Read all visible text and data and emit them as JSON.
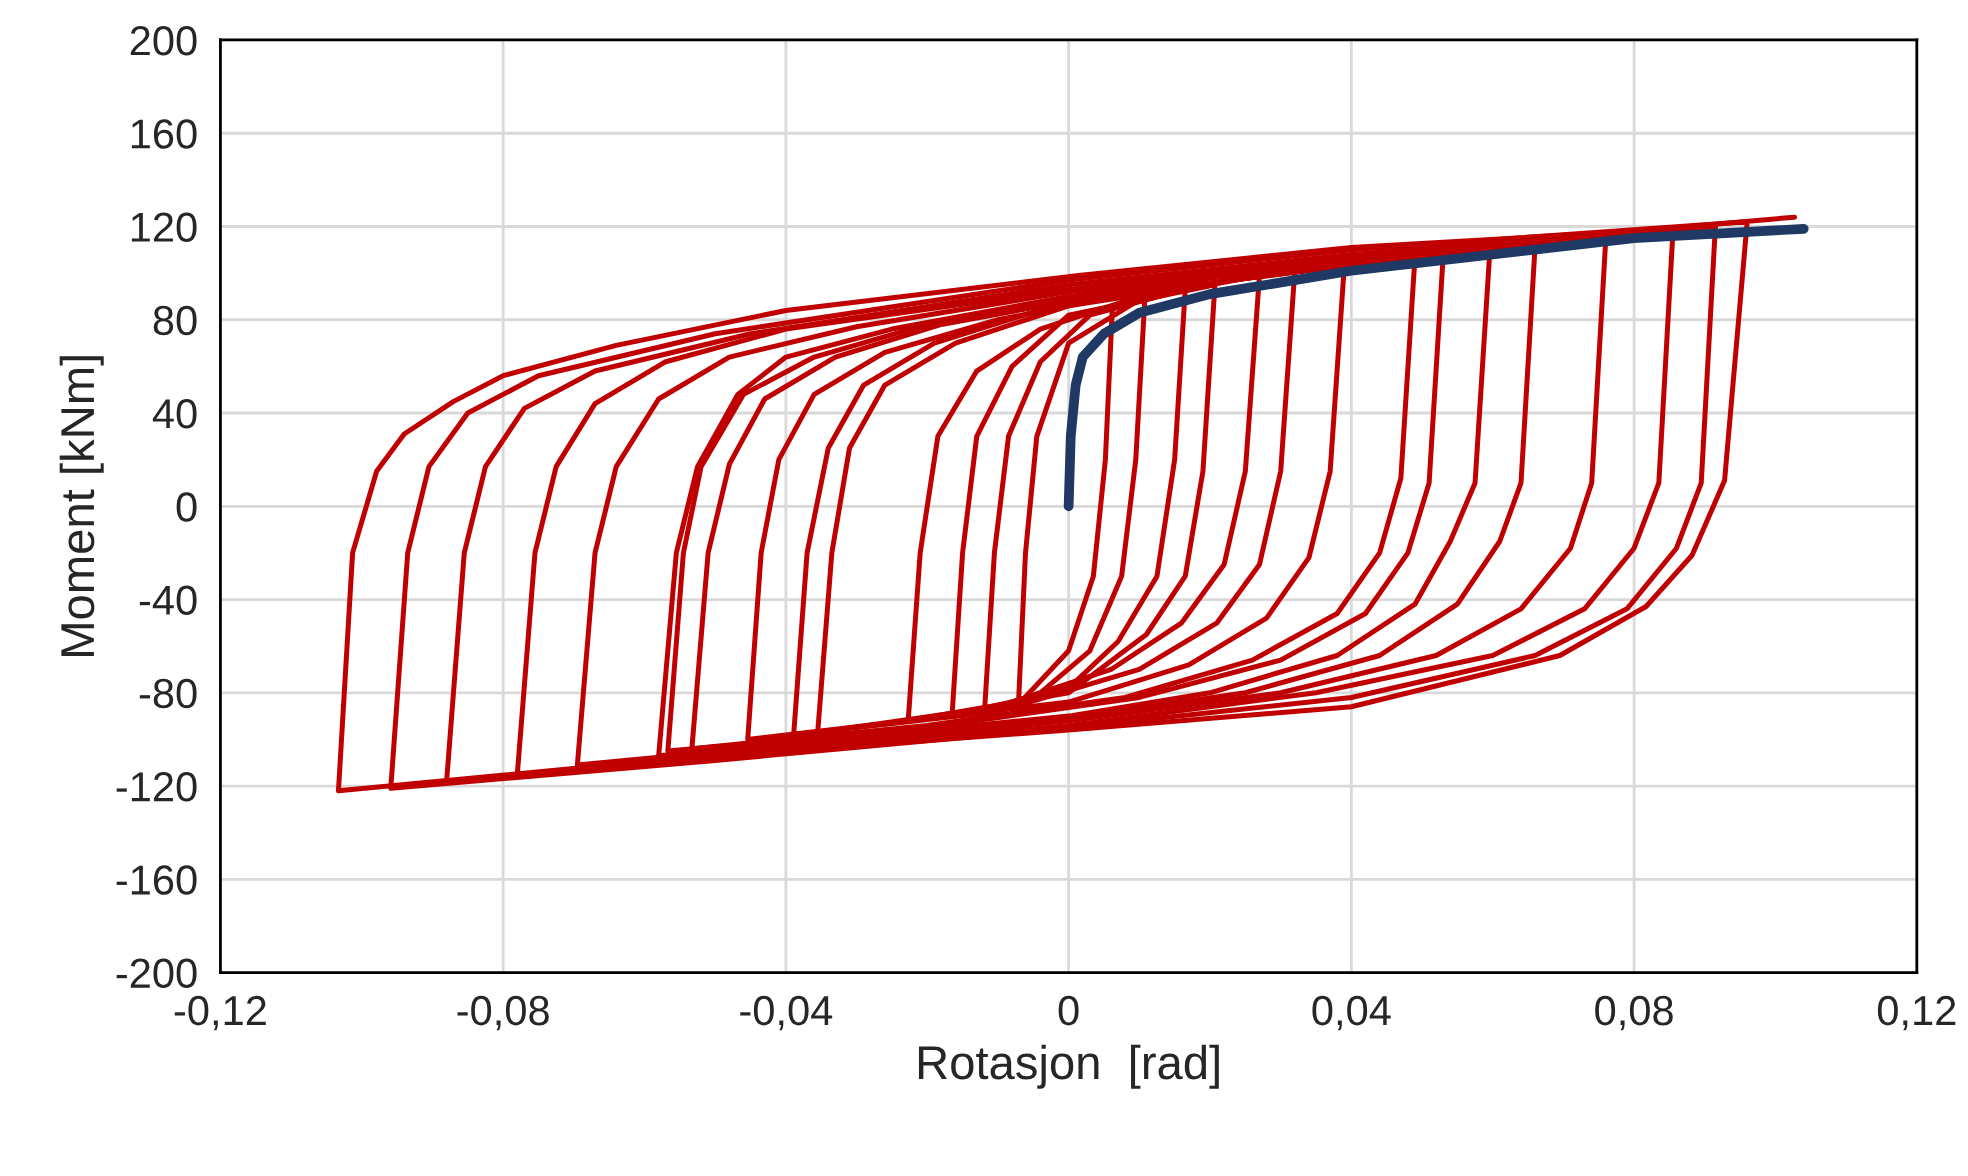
{
  "chart_data": {
    "type": "line",
    "xlabel": "Rotasjon  [rad]",
    "ylabel": "Moment [kNm]",
    "xlim": [
      -0.12,
      0.12
    ],
    "ylim": [
      -200,
      200
    ],
    "xticks": [
      {
        "value": -0.12,
        "label": "-0,12"
      },
      {
        "value": -0.08,
        "label": "-0,08"
      },
      {
        "value": -0.04,
        "label": "-0,04"
      },
      0,
      {
        "value": 0.04,
        "label": "0,04"
      },
      {
        "value": 0.08,
        "label": "0,08"
      },
      {
        "value": 0.12,
        "label": "0,12"
      }
    ],
    "yticks": [
      -200,
      -160,
      -120,
      -80,
      -40,
      0,
      40,
      80,
      120,
      160,
      200
    ],
    "grid": true,
    "marker": "none",
    "line_style": "solid",
    "series": [
      {
        "color": "#c00000",
        "x": [
          0.0062,
          0.0052,
          0.0035,
          0.0,
          -0.0071,
          -0.0061,
          -0.0045,
          0.0,
          0.0108
        ],
        "values": [
          86,
          20,
          -30,
          -62,
          -85,
          -20,
          30,
          70,
          90
        ]
      },
      {
        "color": "#c00000",
        "x": [
          0.0108,
          0.0095,
          0.0075,
          0.003,
          -0.004,
          -0.0119,
          -0.0105,
          -0.0085,
          -0.004,
          0.003,
          0.0165
        ],
        "values": [
          90,
          20,
          -30,
          -62,
          -80,
          -88,
          -20,
          30,
          62,
          82,
          93
        ]
      },
      {
        "color": "#c00000",
        "x": [
          0.0165,
          0.015,
          0.0125,
          0.007,
          0.0,
          -0.0165,
          -0.015,
          -0.013,
          -0.008,
          0.0,
          0.0207
        ],
        "values": [
          93,
          20,
          -30,
          -58,
          -78,
          -90,
          -20,
          30,
          60,
          82,
          95
        ]
      },
      {
        "color": "#c00000",
        "x": [
          0.0207,
          0.019,
          0.0165,
          0.011,
          0.0,
          -0.0227,
          -0.021,
          -0.0185,
          -0.013,
          -0.004,
          0.008,
          0.027
        ],
        "values": [
          95,
          15,
          -30,
          -55,
          -80,
          -92,
          -20,
          30,
          58,
          76,
          88,
          99
        ]
      },
      {
        "color": "#c00000",
        "x": [
          0.027,
          0.025,
          0.022,
          0.016,
          0.006,
          -0.01,
          -0.0355,
          -0.0335,
          -0.031,
          -0.026,
          -0.016,
          0.0,
          0.032
        ],
        "values": [
          99,
          15,
          -25,
          -50,
          -70,
          -86,
          -97,
          -20,
          25,
          52,
          70,
          86,
          101
        ]
      },
      {
        "color": "#c00000",
        "x": [
          0.032,
          0.03,
          0.027,
          0.021,
          0.01,
          -0.01,
          -0.0389,
          -0.037,
          -0.034,
          -0.029,
          -0.019,
          0.0,
          0.039
        ],
        "values": [
          101,
          15,
          -25,
          -50,
          -70,
          -88,
          -98,
          -20,
          25,
          52,
          70,
          88,
          103
        ]
      },
      {
        "color": "#c00000",
        "x": [
          0.039,
          0.037,
          0.034,
          0.028,
          0.017,
          0.0,
          -0.0454,
          -0.0435,
          -0.041,
          -0.036,
          -0.026,
          -0.01,
          0.01,
          0.049
        ],
        "values": [
          103,
          15,
          -22,
          -48,
          -68,
          -84,
          -100,
          -20,
          20,
          48,
          66,
          80,
          92,
          107
        ]
      },
      {
        "color": "#c00000",
        "x": [
          0.049,
          0.047,
          0.044,
          0.038,
          0.026,
          0.008,
          -0.02,
          -0.0533,
          -0.051,
          -0.048,
          -0.043,
          -0.033,
          -0.018,
          0.0,
          0.02,
          0.053
        ],
        "values": [
          107,
          12,
          -20,
          -46,
          -66,
          -82,
          -94,
          -104,
          -20,
          18,
          46,
          64,
          78,
          88,
          98,
          108
        ]
      },
      {
        "color": "#c00000",
        "x": [
          0.053,
          0.051,
          0.048,
          0.042,
          0.03,
          0.01,
          -0.02,
          -0.0567,
          -0.0545,
          -0.052,
          -0.046,
          -0.036,
          -0.02,
          0.0,
          0.02,
          0.0596
        ],
        "values": [
          108,
          10,
          -20,
          -46,
          -66,
          -82,
          -95,
          -105,
          -20,
          17,
          48,
          64,
          78,
          89,
          99,
          110
        ]
      },
      {
        "color": "#c00000",
        "x": [
          0.0596,
          0.0575,
          0.054,
          0.049,
          0.038,
          0.02,
          0.0,
          -0.03,
          -0.058,
          -0.0555,
          -0.0525,
          -0.0468,
          -0.04,
          -0.025,
          0.0,
          0.03,
          0.066
        ],
        "values": [
          110,
          10,
          -15,
          -42,
          -64,
          -80,
          -90,
          -99,
          -107,
          -20,
          17,
          48,
          64,
          76,
          90,
          102,
          112
        ]
      },
      {
        "color": "#c00000",
        "x": [
          0.066,
          0.064,
          0.061,
          0.055,
          0.044,
          0.025,
          0.0,
          -0.035,
          -0.0695,
          -0.067,
          -0.064,
          -0.058,
          -0.048,
          -0.03,
          0.0,
          0.035,
          0.076
        ],
        "values": [
          112,
          10,
          -15,
          -42,
          -64,
          -80,
          -91,
          -101,
          -111,
          -20,
          17,
          46,
          64,
          77,
          92,
          105,
          115
        ]
      },
      {
        "color": "#c00000",
        "x": [
          0.076,
          0.074,
          0.071,
          0.064,
          0.052,
          0.03,
          0.0,
          -0.04,
          -0.078,
          -0.0755,
          -0.0725,
          -0.067,
          -0.057,
          -0.04,
          0.0,
          0.04,
          0.0855
        ],
        "values": [
          115,
          10,
          -18,
          -44,
          -64,
          -80,
          -92,
          -104,
          -115,
          -20,
          17,
          44,
          62,
          76,
          93,
          107,
          118
        ]
      },
      {
        "color": "#c00000",
        "x": [
          0.0855,
          0.0835,
          0.08,
          0.073,
          0.06,
          0.035,
          0.0,
          -0.045,
          -0.088,
          -0.0855,
          -0.0825,
          -0.077,
          -0.067,
          -0.045,
          0.0,
          0.04,
          0.0915
        ],
        "values": [
          118,
          10,
          -18,
          -44,
          -64,
          -80,
          -94,
          -107,
          -118,
          -20,
          17,
          42,
          58,
          74,
          95,
          108,
          120
        ]
      },
      {
        "color": "#c00000",
        "x": [
          0.0915,
          0.0895,
          0.086,
          0.079,
          0.066,
          0.04,
          0.0,
          -0.05,
          -0.0959,
          -0.0935,
          -0.0905,
          -0.085,
          -0.075,
          -0.05,
          0.0,
          0.04,
          0.096
        ],
        "values": [
          120,
          10,
          -18,
          -44,
          -64,
          -82,
          -95,
          -109,
          -121,
          -20,
          17,
          40,
          56,
          74,
          97,
          110,
          122
        ]
      },
      {
        "color": "#c00000",
        "x": [
          0.096,
          0.0928,
          0.0882,
          0.0817,
          0.0695,
          0.04,
          0.0,
          -0.058,
          -0.1033,
          -0.1013,
          -0.0979,
          -0.094,
          -0.087,
          -0.08,
          -0.064,
          -0.04,
          0.0014,
          0.04,
          0.08,
          0.1027
        ],
        "values": [
          122,
          11,
          -21,
          -43,
          -64,
          -86,
          -96,
          -109,
          -122,
          -20,
          15,
          31,
          45,
          56,
          69,
          84,
          99,
          111,
          118,
          124
        ]
      },
      {
        "color": "#1f3864",
        "x": [
          0.0,
          0.0003,
          0.001,
          0.002,
          0.005,
          0.01,
          0.02,
          0.04,
          0.06,
          0.08,
          0.104
        ],
        "values": [
          0,
          30,
          52,
          64,
          74,
          83,
          91,
          101,
          108,
          115,
          119
        ]
      }
    ]
  }
}
